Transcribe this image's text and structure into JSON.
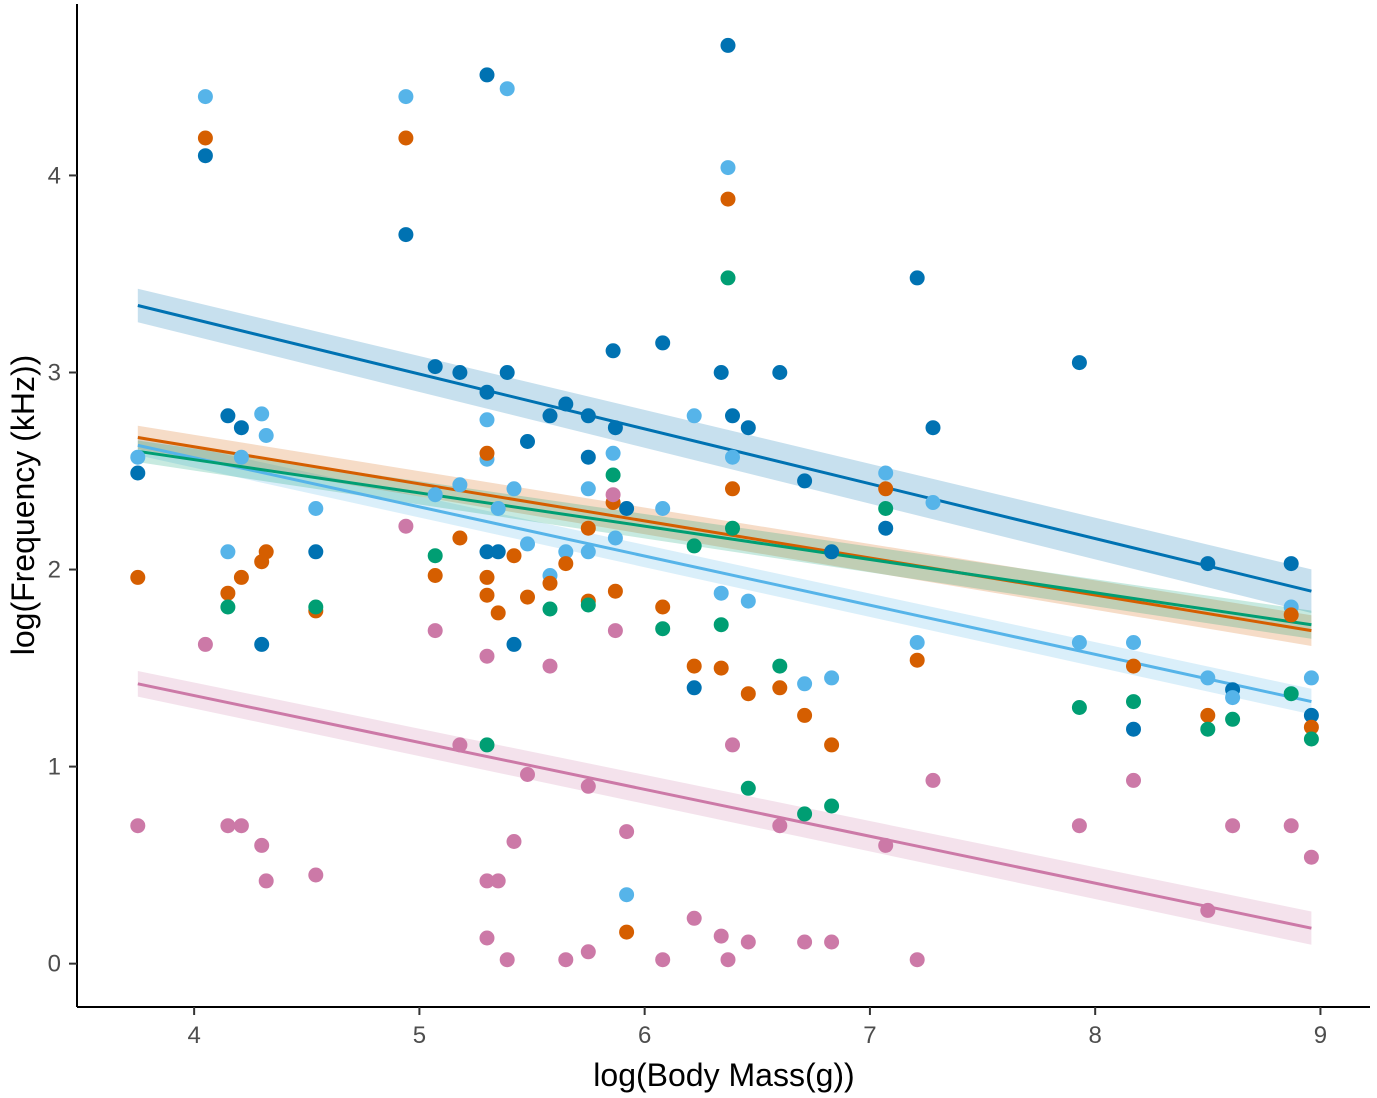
{
  "chart_data": {
    "type": "scatter",
    "title": "",
    "xlabel": "log(Body Mass(g))",
    "ylabel": "log(Frequency (kHz))",
    "xlim": [
      3.48,
      9.22
    ],
    "ylim": [
      -0.22,
      4.87
    ],
    "xticks": [
      4,
      5,
      6,
      7,
      8,
      9
    ],
    "yticks": [
      0,
      1,
      2,
      3,
      4
    ],
    "grid": false,
    "legend": "none",
    "series": [
      {
        "name": "dark-blue",
        "color": "#0072B2",
        "points": [
          [
            3.75,
            2.49
          ],
          [
            4.05,
            4.1
          ],
          [
            4.15,
            2.78
          ],
          [
            4.21,
            2.72
          ],
          [
            4.3,
            1.62
          ],
          [
            4.54,
            2.09
          ],
          [
            4.94,
            3.7
          ],
          [
            5.07,
            3.03
          ],
          [
            5.18,
            3.0
          ],
          [
            5.3,
            4.51
          ],
          [
            5.3,
            2.09
          ],
          [
            5.3,
            2.9
          ],
          [
            5.35,
            2.09
          ],
          [
            5.39,
            3.0
          ],
          [
            5.42,
            1.62
          ],
          [
            5.48,
            2.65
          ],
          [
            5.58,
            2.78
          ],
          [
            5.65,
            2.84
          ],
          [
            5.75,
            2.78
          ],
          [
            5.75,
            2.57
          ],
          [
            5.86,
            3.11
          ],
          [
            5.87,
            2.72
          ],
          [
            5.92,
            2.31
          ],
          [
            6.08,
            3.15
          ],
          [
            6.22,
            1.4
          ],
          [
            6.34,
            3.0
          ],
          [
            6.37,
            4.66
          ],
          [
            6.39,
            2.78
          ],
          [
            6.46,
            2.72
          ],
          [
            6.6,
            3.0
          ],
          [
            6.71,
            2.45
          ],
          [
            6.83,
            2.09
          ],
          [
            7.07,
            2.21
          ],
          [
            7.21,
            3.48
          ],
          [
            7.28,
            2.72
          ],
          [
            7.93,
            3.05
          ],
          [
            8.17,
            1.19
          ],
          [
            8.5,
            2.03
          ],
          [
            8.61,
            1.39
          ],
          [
            8.87,
            2.03
          ],
          [
            8.96,
            1.26
          ]
        ],
        "fit": [
          [
            3.75,
            3.34
          ],
          [
            8.96,
            1.89
          ]
        ],
        "ci": 0.085
      },
      {
        "name": "light-blue",
        "color": "#56B4E9",
        "points": [
          [
            3.75,
            2.57
          ],
          [
            4.05,
            4.4
          ],
          [
            4.15,
            2.09
          ],
          [
            4.21,
            2.57
          ],
          [
            4.3,
            2.79
          ],
          [
            4.32,
            2.68
          ],
          [
            4.54,
            2.31
          ],
          [
            4.94,
            4.4
          ],
          [
            5.07,
            2.38
          ],
          [
            5.18,
            2.43
          ],
          [
            5.3,
            2.76
          ],
          [
            5.3,
            2.56
          ],
          [
            5.35,
            2.31
          ],
          [
            5.39,
            4.44
          ],
          [
            5.42,
            2.41
          ],
          [
            5.48,
            2.13
          ],
          [
            5.58,
            1.97
          ],
          [
            5.65,
            2.09
          ],
          [
            5.75,
            2.41
          ],
          [
            5.75,
            2.09
          ],
          [
            5.86,
            2.59
          ],
          [
            5.87,
            2.16
          ],
          [
            5.92,
            0.35
          ],
          [
            6.08,
            2.31
          ],
          [
            6.22,
            2.78
          ],
          [
            6.34,
            1.88
          ],
          [
            6.37,
            4.04
          ],
          [
            6.39,
            2.57
          ],
          [
            6.46,
            1.84
          ],
          [
            6.71,
            1.42
          ],
          [
            6.83,
            1.45
          ],
          [
            7.07,
            2.49
          ],
          [
            7.21,
            1.63
          ],
          [
            7.28,
            2.34
          ],
          [
            7.93,
            1.63
          ],
          [
            8.17,
            1.63
          ],
          [
            8.5,
            1.45
          ],
          [
            8.61,
            1.35
          ],
          [
            8.87,
            1.81
          ],
          [
            8.96,
            1.45
          ]
        ],
        "fit": [
          [
            3.75,
            2.63
          ],
          [
            8.96,
            1.33
          ]
        ],
        "ci": 0.05
      },
      {
        "name": "orange",
        "color": "#D55E00",
        "points": [
          [
            3.75,
            1.96
          ],
          [
            4.05,
            4.19
          ],
          [
            4.15,
            1.88
          ],
          [
            4.21,
            1.96
          ],
          [
            4.3,
            2.04
          ],
          [
            4.32,
            2.09
          ],
          [
            4.54,
            1.79
          ],
          [
            4.94,
            4.19
          ],
          [
            5.07,
            1.97
          ],
          [
            5.18,
            2.16
          ],
          [
            5.3,
            1.96
          ],
          [
            5.3,
            1.87
          ],
          [
            5.3,
            2.59
          ],
          [
            5.35,
            1.78
          ],
          [
            5.42,
            2.07
          ],
          [
            5.48,
            1.86
          ],
          [
            5.58,
            1.93
          ],
          [
            5.65,
            2.03
          ],
          [
            5.75,
            2.21
          ],
          [
            5.75,
            1.84
          ],
          [
            5.86,
            2.34
          ],
          [
            5.87,
            1.89
          ],
          [
            5.92,
            0.16
          ],
          [
            6.08,
            1.81
          ],
          [
            6.22,
            1.51
          ],
          [
            6.34,
            1.5
          ],
          [
            6.37,
            3.88
          ],
          [
            6.39,
            2.41
          ],
          [
            6.46,
            1.37
          ],
          [
            6.6,
            1.4
          ],
          [
            6.71,
            1.26
          ],
          [
            6.83,
            1.11
          ],
          [
            7.07,
            2.41
          ],
          [
            7.21,
            1.54
          ],
          [
            8.17,
            1.51
          ],
          [
            8.5,
            1.26
          ],
          [
            8.87,
            1.77
          ],
          [
            8.96,
            1.2
          ]
        ],
        "fit": [
          [
            3.75,
            2.67
          ],
          [
            8.96,
            1.69
          ]
        ],
        "ci": 0.06
      },
      {
        "name": "green",
        "color": "#009E73",
        "points": [
          [
            4.15,
            1.81
          ],
          [
            4.54,
            1.81
          ],
          [
            5.07,
            2.07
          ],
          [
            5.3,
            1.11
          ],
          [
            5.58,
            1.8
          ],
          [
            5.75,
            1.82
          ],
          [
            5.86,
            2.48
          ],
          [
            6.08,
            1.7
          ],
          [
            6.22,
            2.12
          ],
          [
            6.34,
            1.72
          ],
          [
            6.37,
            3.48
          ],
          [
            6.39,
            2.21
          ],
          [
            6.46,
            0.89
          ],
          [
            6.6,
            1.51
          ],
          [
            6.71,
            0.76
          ],
          [
            6.83,
            0.8
          ],
          [
            7.07,
            2.31
          ],
          [
            7.93,
            1.3
          ],
          [
            8.17,
            1.33
          ],
          [
            8.5,
            1.19
          ],
          [
            8.61,
            1.24
          ],
          [
            8.87,
            1.37
          ],
          [
            8.96,
            1.14
          ]
        ],
        "fit": [
          [
            3.75,
            2.6
          ],
          [
            8.96,
            1.72
          ]
        ],
        "ci": 0.055
      },
      {
        "name": "pink",
        "color": "#CC79A7",
        "points": [
          [
            3.75,
            0.7
          ],
          [
            4.05,
            1.62
          ],
          [
            4.15,
            0.7
          ],
          [
            4.21,
            0.7
          ],
          [
            4.3,
            0.6
          ],
          [
            4.32,
            0.42
          ],
          [
            4.54,
            0.45
          ],
          [
            4.94,
            2.22
          ],
          [
            5.07,
            1.69
          ],
          [
            5.18,
            1.11
          ],
          [
            5.3,
            1.56
          ],
          [
            5.3,
            0.42
          ],
          [
            5.3,
            0.13
          ],
          [
            5.35,
            0.42
          ],
          [
            5.39,
            0.02
          ],
          [
            5.42,
            0.62
          ],
          [
            5.48,
            0.96
          ],
          [
            5.58,
            1.51
          ],
          [
            5.65,
            0.02
          ],
          [
            5.75,
            0.9
          ],
          [
            5.75,
            0.06
          ],
          [
            5.86,
            2.38
          ],
          [
            5.87,
            1.69
          ],
          [
            5.92,
            0.67
          ],
          [
            6.08,
            0.02
          ],
          [
            6.22,
            0.23
          ],
          [
            6.34,
            0.14
          ],
          [
            6.37,
            0.02
          ],
          [
            6.39,
            1.11
          ],
          [
            6.46,
            0.11
          ],
          [
            6.6,
            0.7
          ],
          [
            6.71,
            0.11
          ],
          [
            6.83,
            0.11
          ],
          [
            7.07,
            0.6
          ],
          [
            7.21,
            0.02
          ],
          [
            7.28,
            0.93
          ],
          [
            7.93,
            0.7
          ],
          [
            8.17,
            0.93
          ],
          [
            8.5,
            0.27
          ],
          [
            8.61,
            0.7
          ],
          [
            8.87,
            0.7
          ],
          [
            8.96,
            0.54
          ]
        ],
        "fit": [
          [
            3.75,
            1.42
          ],
          [
            8.96,
            0.18
          ]
        ],
        "ci": 0.065
      }
    ]
  }
}
